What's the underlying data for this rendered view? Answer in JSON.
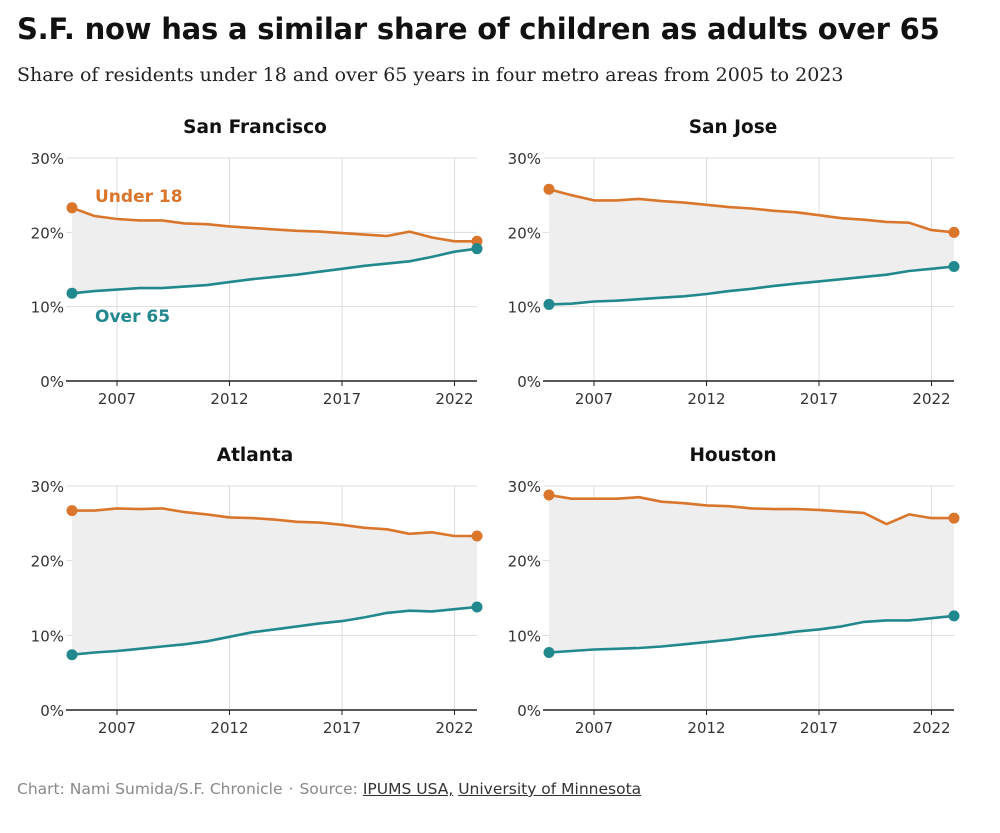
{
  "title": "S.F. now has a similar share of children as adults over 65",
  "subtitle": "Share of residents under 18 and over 65 years in four metro areas from 2005 to 2023",
  "footer": {
    "credit": "Chart: Nami Sumida/S.F. Chronicle",
    "sep": "·",
    "source_prefix": "Source:",
    "source_link1": "IPUMS USA,",
    "source_link2": "University of Minnesota"
  },
  "colors": {
    "under18": "#d9762b",
    "over65": "#21898e",
    "band": "#eeeeee",
    "grid": "#dddddd",
    "axis": "#222222"
  },
  "series_labels": {
    "under18": "Under 18",
    "over65": "Over 65"
  },
  "chart_data": [
    {
      "type": "line",
      "title": "San Francisco",
      "x": [
        2005,
        2006,
        2007,
        2008,
        2009,
        2010,
        2011,
        2012,
        2013,
        2014,
        2015,
        2016,
        2017,
        2018,
        2019,
        2020,
        2021,
        2022,
        2023
      ],
      "series": [
        {
          "name": "Under 18",
          "values": [
            23.3,
            22.2,
            21.8,
            21.6,
            21.6,
            21.2,
            21.1,
            20.8,
            20.6,
            20.4,
            20.2,
            20.1,
            19.9,
            19.7,
            19.5,
            20.1,
            19.3,
            18.8,
            18.8
          ]
        },
        {
          "name": "Over 65",
          "values": [
            11.8,
            12.1,
            12.3,
            12.5,
            12.5,
            12.7,
            12.9,
            13.3,
            13.7,
            14.0,
            14.3,
            14.7,
            15.1,
            15.5,
            15.8,
            16.1,
            16.7,
            17.4,
            17.8
          ]
        }
      ],
      "xticks": [
        "2007",
        "2012",
        "2017",
        "2022"
      ],
      "yticks": [
        "0%",
        "10%",
        "20%",
        "30%"
      ],
      "ylim": [
        0,
        30
      ],
      "xlim": [
        2005,
        2023
      ],
      "inline_labels": true
    },
    {
      "type": "line",
      "title": "San Jose",
      "x": [
        2005,
        2006,
        2007,
        2008,
        2009,
        2010,
        2011,
        2012,
        2013,
        2014,
        2015,
        2016,
        2017,
        2018,
        2019,
        2020,
        2021,
        2022,
        2023
      ],
      "series": [
        {
          "name": "Under 18",
          "values": [
            25.8,
            25.0,
            24.3,
            24.3,
            24.5,
            24.2,
            24.0,
            23.7,
            23.4,
            23.2,
            22.9,
            22.7,
            22.3,
            21.9,
            21.7,
            21.4,
            21.3,
            20.3,
            20.0
          ]
        },
        {
          "name": "Over 65",
          "values": [
            10.3,
            10.4,
            10.7,
            10.8,
            11.0,
            11.2,
            11.4,
            11.7,
            12.1,
            12.4,
            12.8,
            13.1,
            13.4,
            13.7,
            14.0,
            14.3,
            14.8,
            15.1,
            15.4
          ]
        }
      ],
      "xticks": [
        "2007",
        "2012",
        "2017",
        "2022"
      ],
      "yticks": [
        "0%",
        "10%",
        "20%",
        "30%"
      ],
      "ylim": [
        0,
        30
      ],
      "xlim": [
        2005,
        2023
      ],
      "inline_labels": false
    },
    {
      "type": "line",
      "title": "Atlanta",
      "x": [
        2005,
        2006,
        2007,
        2008,
        2009,
        2010,
        2011,
        2012,
        2013,
        2014,
        2015,
        2016,
        2017,
        2018,
        2019,
        2020,
        2021,
        2022,
        2023
      ],
      "series": [
        {
          "name": "Under 18",
          "values": [
            26.7,
            26.7,
            27.0,
            26.9,
            27.0,
            26.5,
            26.2,
            25.8,
            25.7,
            25.5,
            25.2,
            25.1,
            24.8,
            24.4,
            24.2,
            23.6,
            23.8,
            23.3,
            23.3
          ]
        },
        {
          "name": "Over 65",
          "values": [
            7.4,
            7.7,
            7.9,
            8.2,
            8.5,
            8.8,
            9.2,
            9.8,
            10.4,
            10.8,
            11.2,
            11.6,
            11.9,
            12.4,
            13.0,
            13.3,
            13.2,
            13.5,
            13.8
          ]
        }
      ],
      "xticks": [
        "2007",
        "2012",
        "2017",
        "2022"
      ],
      "yticks": [
        "0%",
        "10%",
        "20%",
        "30%"
      ],
      "ylim": [
        0,
        30
      ],
      "xlim": [
        2005,
        2023
      ],
      "inline_labels": false
    },
    {
      "type": "line",
      "title": "Houston",
      "x": [
        2005,
        2006,
        2007,
        2008,
        2009,
        2010,
        2011,
        2012,
        2013,
        2014,
        2015,
        2016,
        2017,
        2018,
        2019,
        2020,
        2021,
        2022,
        2023
      ],
      "series": [
        {
          "name": "Under 18",
          "values": [
            28.8,
            28.3,
            28.3,
            28.3,
            28.5,
            27.9,
            27.7,
            27.4,
            27.3,
            27.0,
            26.9,
            26.9,
            26.8,
            26.6,
            26.4,
            24.9,
            26.2,
            25.7,
            25.7
          ]
        },
        {
          "name": "Over 65",
          "values": [
            7.7,
            7.9,
            8.1,
            8.2,
            8.3,
            8.5,
            8.8,
            9.1,
            9.4,
            9.8,
            10.1,
            10.5,
            10.8,
            11.2,
            11.8,
            12.0,
            12.0,
            12.3,
            12.6
          ]
        }
      ],
      "xticks": [
        "2007",
        "2012",
        "2017",
        "2022"
      ],
      "yticks": [
        "0%",
        "10%",
        "20%",
        "30%"
      ],
      "ylim": [
        0,
        30
      ],
      "xlim": [
        2005,
        2023
      ],
      "inline_labels": false
    }
  ]
}
